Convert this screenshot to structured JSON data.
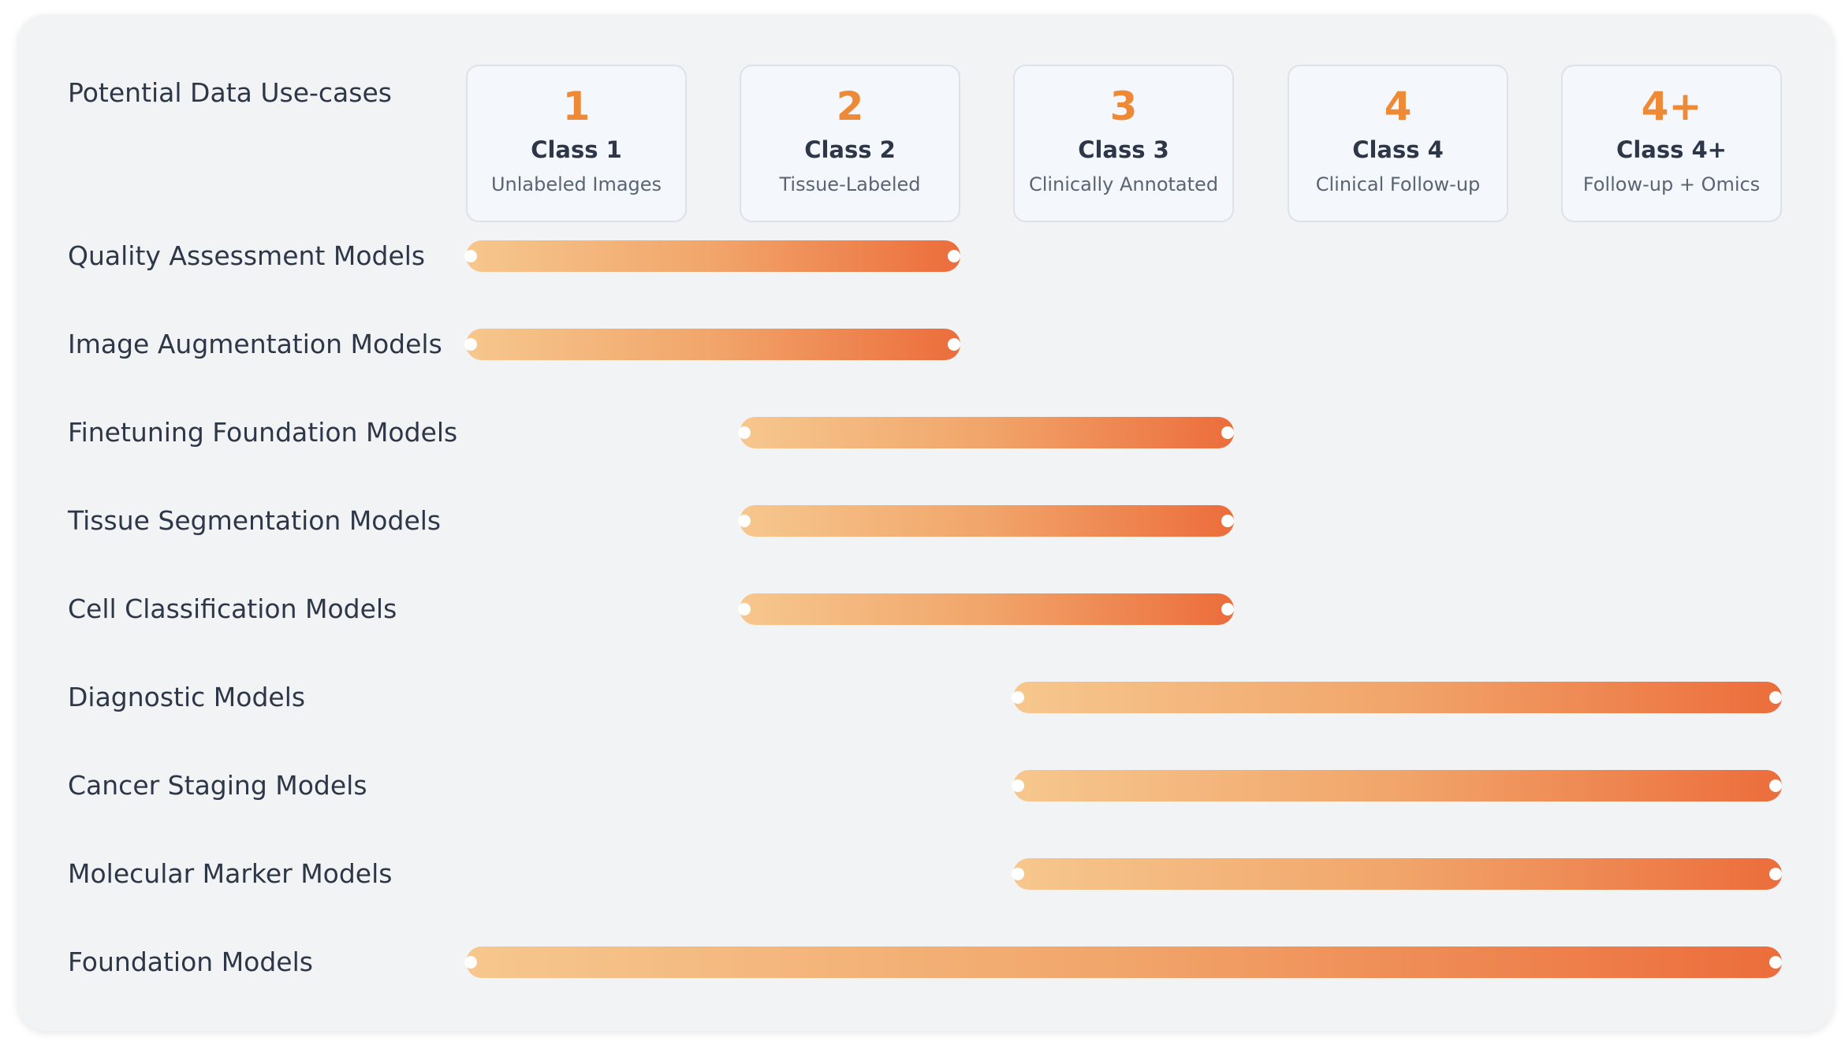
{
  "header": {
    "title": "Potential Data Use-cases"
  },
  "classes": [
    {
      "num": "1",
      "name": "Class 1",
      "desc": "Unlabeled Images"
    },
    {
      "num": "2",
      "name": "Class 2",
      "desc": "Tissue-Labeled"
    },
    {
      "num": "3",
      "name": "Class 3",
      "desc": "Clinically Annotated"
    },
    {
      "num": "4",
      "name": "Class 4",
      "desc": "Clinical Follow-up"
    },
    {
      "num": "4+",
      "name": "Class 4+",
      "desc": "Follow-up + Omics"
    }
  ],
  "rows": [
    {
      "label": "Quality Assessment Models",
      "from_class": 1,
      "to_class": 2
    },
    {
      "label": "Image Augmentation Models",
      "from_class": 1,
      "to_class": 2
    },
    {
      "label": "Finetuning Foundation Models",
      "from_class": 2,
      "to_class": 3
    },
    {
      "label": "Tissue Segmentation Models",
      "from_class": 2,
      "to_class": 3
    },
    {
      "label": "Cell Classification Models",
      "from_class": 2,
      "to_class": 3
    },
    {
      "label": "Diagnostic Models",
      "from_class": 3,
      "to_class": 5
    },
    {
      "label": "Cancer Staging Models",
      "from_class": 3,
      "to_class": 5
    },
    {
      "label": "Molecular Marker Models",
      "from_class": 3,
      "to_class": 5
    },
    {
      "label": "Foundation Models",
      "from_class": 1,
      "to_class": 5
    }
  ],
  "colors": {
    "accent": "#ee8a35",
    "bar_start": "#f6c78e",
    "bar_end": "#ec6d3c"
  }
}
